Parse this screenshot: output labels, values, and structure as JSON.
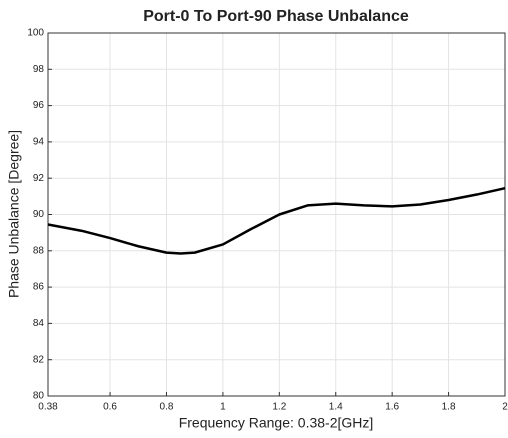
{
  "chart_data": {
    "type": "line",
    "title": "Port-0 To Port-90 Phase Unbalance",
    "x_label": "Frequency Range: 0.38-2[GHz]",
    "y_label": "Phase Unbalance [Degree]",
    "x": [
      0.38,
      0.5,
      0.6,
      0.7,
      0.8,
      0.85,
      0.9,
      1.0,
      1.1,
      1.2,
      1.3,
      1.4,
      1.5,
      1.6,
      1.7,
      1.8,
      1.9,
      2.0
    ],
    "series": [
      {
        "color": "#000000",
        "values": [
          89.45,
          89.1,
          88.7,
          88.25,
          87.9,
          87.85,
          87.9,
          88.35,
          89.2,
          90.0,
          90.5,
          90.6,
          90.5,
          90.45,
          90.55,
          90.8,
          91.1,
          91.45
        ]
      }
    ],
    "xlim": [
      0.38,
      2
    ],
    "xticks": [
      0.38,
      0.6,
      0.8,
      1,
      1.2,
      1.4,
      1.6,
      1.8,
      2
    ],
    "ylim": [
      80,
      100
    ],
    "yticks": [
      80,
      82,
      84,
      86,
      88,
      90,
      92,
      94,
      96,
      98,
      100
    ],
    "grid": true
  }
}
